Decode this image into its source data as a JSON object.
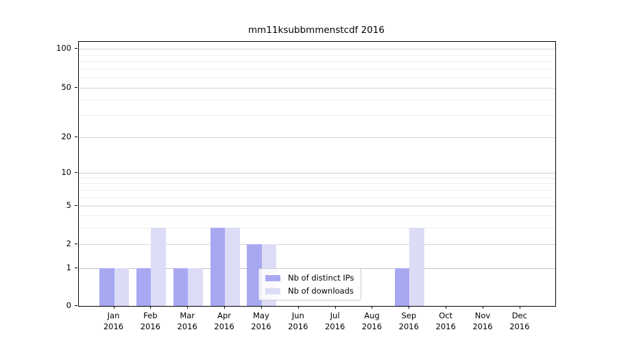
{
  "title": "mm11ksubbmmenstcdf 2016",
  "colors": {
    "distinct_ips_bar": "#a8a8f2",
    "downloads_bar": "#dcdcf7",
    "grid_major": "#d4d4d4",
    "grid_minor": "#ececec",
    "axis": "#000000"
  },
  "y_axis": {
    "tick_labels": [
      "100",
      "50",
      "20",
      "10",
      "5",
      "2",
      "1",
      "0"
    ],
    "tick_values": [
      100,
      50,
      20,
      10,
      5,
      2,
      1,
      0
    ]
  },
  "chart_data": {
    "type": "bar",
    "title": "mm11ksubbmmenstcdf 2016",
    "categories": [
      "Jan 2016",
      "Feb 2016",
      "Mar 2016",
      "Apr 2016",
      "May 2016",
      "Jun 2016",
      "Jul 2016",
      "Aug 2016",
      "Sep 2016",
      "Oct 2016",
      "Nov 2016",
      "Dec 2016"
    ],
    "series": [
      {
        "name": "Nb of distinct IPs",
        "color": "#a8a8f2",
        "values": [
          1,
          1,
          1,
          3,
          2,
          0,
          0,
          0,
          1,
          0,
          0,
          0
        ]
      },
      {
        "name": "Nb of downloads",
        "color": "#dcdcf7",
        "values": [
          1,
          3,
          1,
          3,
          2,
          0,
          0,
          0,
          3,
          0,
          0,
          0
        ]
      }
    ],
    "xlabel": "",
    "ylabel": "",
    "yscale": "log-like (0,1,2,5,10,20,50,100)",
    "ylim": [
      0,
      130
    ],
    "grid": true,
    "legend_position": "lower center"
  },
  "legend": {
    "items": [
      "Nb of distinct IPs",
      "Nb of downloads"
    ]
  }
}
